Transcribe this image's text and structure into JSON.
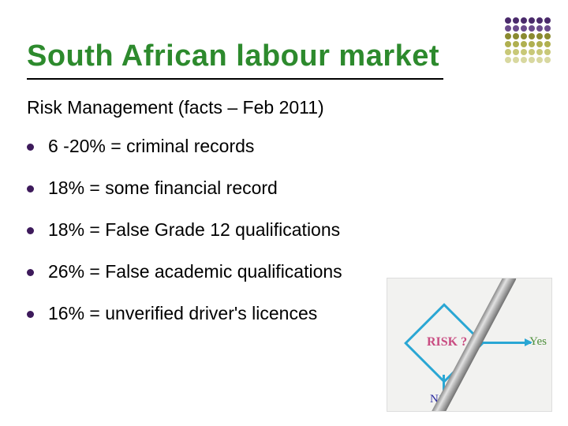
{
  "title": {
    "text": "South African labour market",
    "color": "#2d8a2d",
    "fontsize": 38
  },
  "subtitle": {
    "text": "Risk Management (facts – Feb 2011)",
    "fontsize": 23
  },
  "bullet_color": "#3d1a5b",
  "bullets": [
    "6 -20%  = criminal records",
    "18% = some financial record",
    "18% = False Grade 12 qualifications",
    "26% = False academic qualifications",
    "16% = unverified driver's licences"
  ],
  "corner_dots": {
    "palette_rows": [
      "#4a2a6b",
      "#4a2a6b",
      "#4a2a6b",
      "#4a2a6b",
      "#4a2a6b",
      "#4a2a6b",
      "#6a4a8b",
      "#6a4a8b",
      "#6a4a8b",
      "#6a4a8b",
      "#6a4a8b",
      "#6a4a8b",
      "#8a8a30",
      "#8a8a30",
      "#8a8a30",
      "#8a8a30",
      "#8a8a30",
      "#8a8a30",
      "#b0b050",
      "#b0b050",
      "#b0b050",
      "#b0b050",
      "#b0b050",
      "#b0b050",
      "#c8c878",
      "#c8c878",
      "#c8c878",
      "#c8c878",
      "#c8c878",
      "#c8c878",
      "#d8d8a0",
      "#d8d8a0",
      "#d8d8a0",
      "#d8d8a0",
      "#d8d8a0",
      "#d8d8a0"
    ]
  },
  "bottom_image": {
    "risk_text": "RISK ?",
    "yes_text": "Yes",
    "no_text": "No",
    "line_color": "#2aa7d4"
  }
}
